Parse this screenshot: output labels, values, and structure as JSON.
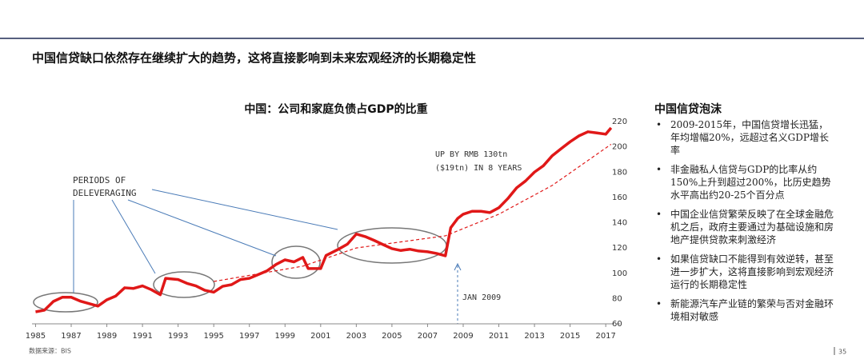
{
  "header": {
    "title": "中国信贷缺口依然存在继续扩大的趋势，这将直接影响到未来宏观经济的长期稳定性"
  },
  "chart_data": {
    "type": "line",
    "title": "中国：公司和家庭负债占GDP的比重",
    "series": [
      {
        "color": "#e01818",
        "dashed": false,
        "x": [
          1985,
          1985.5,
          1986,
          1986.5,
          1987,
          1987.5,
          1988,
          1988.5,
          1989,
          1989.5,
          1990,
          1990.5,
          1991,
          1991.5,
          1992,
          1992.3,
          1993,
          1993.5,
          1994,
          1994.5,
          1995,
          1995.5,
          1996,
          1996.5,
          1997,
          1997.5,
          1998,
          1998.5,
          1999,
          1999.5,
          2000,
          2000.3,
          2001,
          2001.3,
          2002,
          2002.5,
          2003,
          2003.5,
          2004,
          2004.5,
          2005,
          2005.5,
          2006,
          2006.5,
          2007,
          2007.5,
          2008,
          2008.3,
          2008.7,
          2009,
          2009.5,
          2010,
          2010.5,
          2011,
          2011.5,
          2012,
          2012.5,
          2013,
          2013.5,
          2014,
          2014.5,
          2015,
          2015.5,
          2016,
          2016.5,
          2017,
          2017.3
        ],
        "values": [
          69.5,
          70.8,
          77.7,
          81,
          81,
          78,
          76,
          74,
          79,
          82,
          88.5,
          88,
          90,
          87,
          83,
          96,
          95,
          92,
          90,
          86.5,
          85,
          89.7,
          91,
          95,
          96,
          99,
          102,
          107,
          110.6,
          109,
          112.5,
          103.7,
          103.7,
          114,
          119,
          123,
          131,
          129,
          126,
          122.7,
          119.5,
          118,
          119,
          117.6,
          117,
          115.7,
          113.8,
          136,
          143.5,
          146.7,
          149,
          149,
          148,
          151.8,
          159,
          167.6,
          173,
          180,
          185,
          193,
          198.6,
          204,
          208.7,
          211.9,
          211,
          210,
          215
        ]
      },
      {
        "color": "#e01818",
        "dashed": true,
        "x": [
          1995,
          2000,
          2003,
          2008,
          2011,
          2014,
          2017.3
        ],
        "values": [
          93.5,
          105.6,
          120,
          129.6,
          146.7,
          169.5,
          202
        ]
      }
    ],
    "xlim": [
      1984.8,
      2017.8
    ],
    "xticks": [
      1985,
      1987,
      1989,
      1991,
      1993,
      1995,
      1997,
      1999,
      2001,
      2003,
      2005,
      2007,
      2009,
      2011,
      2013,
      2015,
      2017
    ],
    "ylim": [
      60,
      220
    ],
    "yticks": [
      60,
      80,
      100,
      120,
      140,
      160,
      180,
      200,
      220
    ],
    "annotations": {
      "deleveraging": [
        "PERIODS OF",
        "DELEVERAGING"
      ],
      "growth": [
        "UP BY RMB 130tn",
        "($19tn) IN 8 YEARS"
      ],
      "jan": "JAN 2009"
    }
  },
  "panel": {
    "title": "中国信贷泡沫",
    "bullets": [
      "2009-2015年，中国信贷增长迅猛，年均增幅20%，远超过名义GDP增长率",
      "非金融私人信贷与GDP的比率从约150%上升到超过200%，比历史趋势水平高出约20-25个百分点",
      "中国企业信贷繁荣反映了在全球金融危机之后，政府主要通过为基础设施和房地产提供贷款来刺激经济",
      "如果信贷缺口不能得到有效逆转，甚至进一步扩大，这将直接影响到宏观经济运行的长期稳定性",
      "新能源汽车产业链的繁荣与否对金融环境相对敏感"
    ]
  },
  "footer": {
    "source": "数据来源：BIS",
    "page": "35"
  }
}
